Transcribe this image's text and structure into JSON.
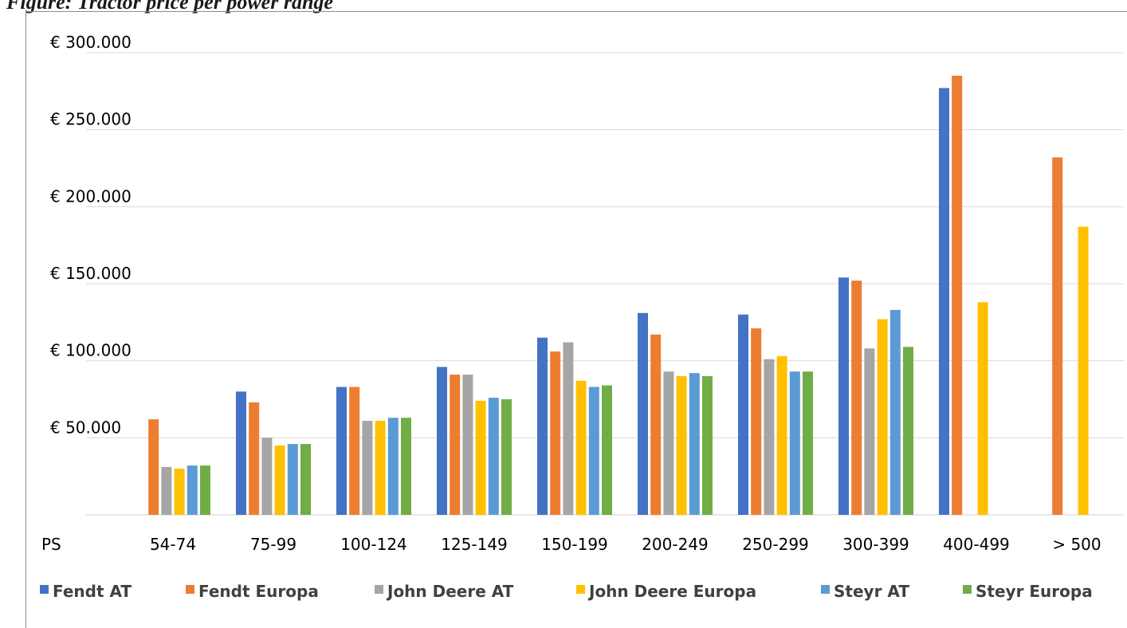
{
  "caption": "Figure: Tractor price per power range",
  "chart_data": {
    "type": "bar",
    "x_axis_label": "PS",
    "categories": [
      "54-74",
      "75-99",
      "100-124",
      "125-149",
      "150-199",
      "200-249",
      "250-299",
      "300-399",
      "400-499",
      "> 500"
    ],
    "ylim": [
      0,
      300000
    ],
    "y_ticks": [
      {
        "value": 50000,
        "label": "€ 50.000"
      },
      {
        "value": 100000,
        "label": "€ 100.000"
      },
      {
        "value": 150000,
        "label": "€ 150.000"
      },
      {
        "value": 200000,
        "label": "€ 200.000"
      },
      {
        "value": 250000,
        "label": "€ 250.000"
      },
      {
        "value": 300000,
        "label": "€ 300.000"
      }
    ],
    "grid": true,
    "legend_position": "bottom",
    "series": [
      {
        "name": "Fendt AT",
        "color": "#4472C4",
        "values": [
          null,
          80000,
          83000,
          96000,
          115000,
          131000,
          130000,
          154000,
          277000,
          null
        ]
      },
      {
        "name": "Fendt Europa",
        "color": "#ED7D31",
        "values": [
          62000,
          73000,
          83000,
          91000,
          106000,
          117000,
          121000,
          152000,
          285000,
          232000
        ]
      },
      {
        "name": "John Deere AT",
        "color": "#A5A5A5",
        "values": [
          31000,
          50000,
          61000,
          91000,
          112000,
          93000,
          101000,
          108000,
          null,
          null
        ]
      },
      {
        "name": "John Deere Europa",
        "color": "#FFC000",
        "values": [
          30000,
          45000,
          61000,
          74000,
          87000,
          90000,
          103000,
          127000,
          138000,
          187000
        ]
      },
      {
        "name": "Steyr AT",
        "color": "#5B9BD5",
        "values": [
          32000,
          46000,
          63000,
          76000,
          83000,
          92000,
          93000,
          133000,
          null,
          null
        ]
      },
      {
        "name": "Steyr Europa",
        "color": "#70AD47",
        "values": [
          32000,
          46000,
          63000,
          75000,
          84000,
          90000,
          93000,
          109000,
          null,
          null
        ]
      }
    ]
  }
}
